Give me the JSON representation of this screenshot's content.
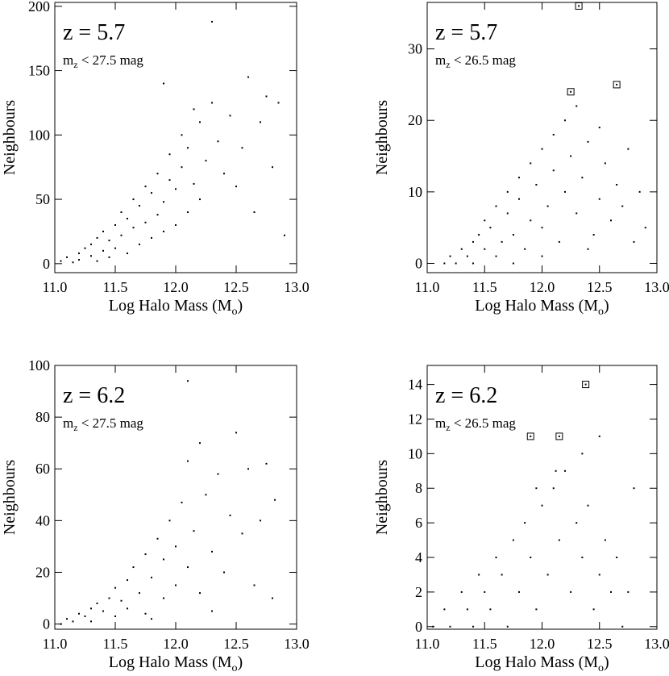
{
  "chart_data": [
    {
      "type": "scatter",
      "annotation": "z = 5.7",
      "subtitle": [
        "m",
        "z",
        " < 27.5 mag"
      ],
      "xlabel": [
        "Log Halo Mass (M",
        "o",
        ")"
      ],
      "ylabel": "Neighbours",
      "color": "#000000",
      "xlim": [
        11.0,
        13.0
      ],
      "ylim": [
        -7,
        203
      ],
      "xticks": [
        {
          "value": 11.0,
          "label": "11.0"
        },
        {
          "value": 11.5,
          "label": "11.5"
        },
        {
          "value": 12.0,
          "label": "12.0"
        },
        {
          "value": 12.5,
          "label": "12.5"
        },
        {
          "value": 13.0,
          "label": "13.0"
        }
      ],
      "yticks": [
        0,
        50,
        100,
        150,
        200
      ],
      "x": [
        11.05,
        11.1,
        11.15,
        11.2,
        11.2,
        11.25,
        11.3,
        11.3,
        11.35,
        11.35,
        11.4,
        11.4,
        11.45,
        11.45,
        11.5,
        11.5,
        11.55,
        11.55,
        11.6,
        11.6,
        11.65,
        11.65,
        11.7,
        11.7,
        11.75,
        11.75,
        11.8,
        11.8,
        11.85,
        11.85,
        11.9,
        11.9,
        11.95,
        11.95,
        12.0,
        12.0,
        12.05,
        12.05,
        12.1,
        12.1,
        12.15,
        12.2,
        12.2,
        12.25,
        12.3,
        12.3,
        12.35,
        12.4,
        12.45,
        12.5,
        12.55,
        12.6,
        12.65,
        12.7,
        12.75,
        12.8,
        12.85,
        12.9,
        11.9,
        12.15
      ],
      "y": [
        2,
        5,
        1,
        8,
        3,
        12,
        6,
        15,
        2,
        20,
        10,
        25,
        5,
        18,
        30,
        12,
        22,
        40,
        8,
        35,
        28,
        50,
        15,
        45,
        32,
        60,
        20,
        55,
        38,
        70,
        25,
        48,
        65,
        85,
        30,
        58,
        75,
        100,
        40,
        90,
        62,
        110,
        50,
        80,
        125,
        188,
        95,
        70,
        115,
        60,
        90,
        145,
        40,
        110,
        130,
        75,
        125,
        22,
        140,
        120
      ]
    },
    {
      "type": "scatter",
      "annotation": "z = 5.7",
      "subtitle": [
        "m",
        "z",
        " < 26.5 mag"
      ],
      "xlabel": [
        "Log Halo Mass (M",
        "o",
        ")"
      ],
      "ylabel": "Neighbours",
      "color": "#000000",
      "xlim": [
        11.0,
        13.0
      ],
      "ylim": [
        -1.3,
        36.5
      ],
      "xticks": [
        {
          "value": 11.0,
          "label": "11.0"
        },
        {
          "value": 11.5,
          "label": "11.5"
        },
        {
          "value": 12.0,
          "label": "12.0"
        },
        {
          "value": 12.5,
          "label": "12.5"
        },
        {
          "value": 13.0,
          "label": "13.0"
        }
      ],
      "yticks": [
        0,
        10,
        20,
        30
      ],
      "x": [
        11.15,
        11.2,
        11.25,
        11.3,
        11.35,
        11.4,
        11.4,
        11.45,
        11.5,
        11.5,
        11.55,
        11.6,
        11.6,
        11.65,
        11.7,
        11.7,
        11.75,
        11.8,
        11.8,
        11.85,
        11.9,
        11.9,
        11.95,
        12.0,
        12.0,
        12.05,
        12.1,
        12.1,
        12.15,
        12.2,
        12.2,
        12.25,
        12.3,
        12.3,
        12.35,
        12.4,
        12.45,
        12.5,
        12.5,
        12.55,
        12.6,
        12.65,
        12.7,
        12.75,
        12.8,
        12.85,
        12.9,
        12.0,
        11.75,
        12.4
      ],
      "y": [
        0,
        1,
        0,
        2,
        1,
        3,
        0,
        4,
        2,
        6,
        5,
        1,
        8,
        3,
        7,
        10,
        4,
        9,
        12,
        2,
        6,
        14,
        11,
        5,
        16,
        8,
        13,
        18,
        3,
        10,
        20,
        15,
        7,
        22,
        12,
        17,
        4,
        9,
        19,
        14,
        6,
        11,
        8,
        16,
        3,
        10,
        5,
        1,
        0,
        2
      ],
      "boxed": {
        "x": [
          12.25,
          12.32,
          12.65
        ],
        "y": [
          24,
          36,
          25
        ]
      }
    },
    {
      "type": "scatter",
      "annotation": "z = 6.2",
      "subtitle": [
        "m",
        "z",
        " < 27.5 mag"
      ],
      "xlabel": [
        "Log Halo Mass (M",
        "o",
        ")"
      ],
      "ylabel": "Neighbours",
      "color": "#000000",
      "xlim": [
        11.0,
        13.0
      ],
      "ylim": [
        -2,
        100
      ],
      "xticks": [
        {
          "value": 11.0,
          "label": "11.0"
        },
        {
          "value": 11.5,
          "label": "11.5"
        },
        {
          "value": 12.0,
          "label": "12.0"
        },
        {
          "value": 12.5,
          "label": "12.5"
        },
        {
          "value": 13.0,
          "label": "13.0"
        }
      ],
      "yticks": [
        0,
        20,
        40,
        60,
        80,
        100
      ],
      "x": [
        11.05,
        11.1,
        11.15,
        11.2,
        11.25,
        11.3,
        11.3,
        11.35,
        11.4,
        11.45,
        11.5,
        11.5,
        11.55,
        11.6,
        11.6,
        11.65,
        11.7,
        11.75,
        11.75,
        11.8,
        11.85,
        11.9,
        11.9,
        11.95,
        12.0,
        12.0,
        12.05,
        12.1,
        12.1,
        12.15,
        12.2,
        12.2,
        12.25,
        12.3,
        12.35,
        12.4,
        12.45,
        12.5,
        12.55,
        12.6,
        12.65,
        12.7,
        12.75,
        12.8,
        12.82,
        12.1,
        11.8,
        12.3
      ],
      "y": [
        0,
        2,
        1,
        4,
        3,
        6,
        1,
        8,
        5,
        10,
        3,
        14,
        9,
        17,
        6,
        22,
        12,
        27,
        4,
        18,
        33,
        10,
        25,
        40,
        15,
        30,
        47,
        22,
        63,
        36,
        70,
        12,
        50,
        28,
        58,
        20,
        42,
        74,
        35,
        60,
        15,
        40,
        62,
        10,
        48,
        94,
        2,
        5
      ]
    },
    {
      "type": "scatter",
      "annotation": "z = 6.2",
      "subtitle": [
        "m",
        "z",
        " < 26.5 mag"
      ],
      "xlabel": [
        "Log Halo Mass (M",
        "o",
        ")"
      ],
      "ylabel": "Neighbours",
      "color": "#000000",
      "xlim": [
        11.0,
        13.0
      ],
      "ylim": [
        -0.15,
        15.1
      ],
      "xticks": [
        {
          "value": 11.0,
          "label": "11.0"
        },
        {
          "value": 11.5,
          "label": "11.5"
        },
        {
          "value": 12.0,
          "label": "12.0"
        },
        {
          "value": 12.5,
          "label": "12.5"
        },
        {
          "value": 13.0,
          "label": "13.0"
        }
      ],
      "yticks": [
        0,
        2,
        4,
        6,
        8,
        10,
        12,
        14
      ],
      "x": [
        11.05,
        11.15,
        11.2,
        11.3,
        11.35,
        11.4,
        11.45,
        11.5,
        11.55,
        11.6,
        11.65,
        11.7,
        11.75,
        11.8,
        11.85,
        11.9,
        11.95,
        12.0,
        12.05,
        12.1,
        12.15,
        12.2,
        12.25,
        12.3,
        12.35,
        12.4,
        12.45,
        12.5,
        12.55,
        12.6,
        12.65,
        12.7,
        12.75,
        12.8,
        12.5,
        12.35,
        12.12,
        11.95
      ],
      "y": [
        0,
        1,
        0,
        2,
        1,
        0,
        3,
        2,
        1,
        4,
        3,
        0,
        5,
        2,
        6,
        4,
        1,
        7,
        3,
        8,
        5,
        9,
        2,
        6,
        4,
        7,
        1,
        3,
        5,
        2,
        4,
        0,
        2,
        8,
        11,
        10,
        9,
        8
      ],
      "boxed": {
        "x": [
          11.9,
          12.15,
          12.38
        ],
        "y": [
          11,
          11,
          14
        ]
      }
    }
  ]
}
